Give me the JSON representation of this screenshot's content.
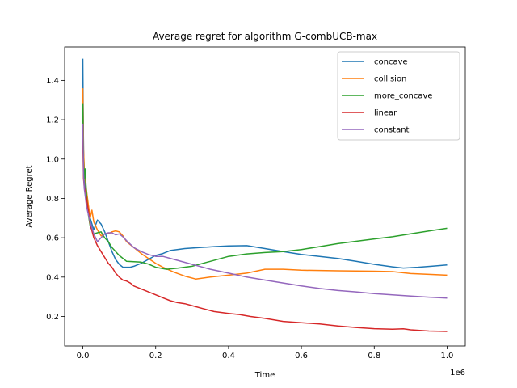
{
  "chart_data": {
    "type": "line",
    "title": "Average regret for algorithm G-combUCB-max",
    "xlabel": "Time",
    "ylabel": "Average Regret",
    "x_offset_label": "1e6",
    "xlim": [
      -0.05,
      1.05
    ],
    "ylim": [
      0.05,
      1.57
    ],
    "x_ticks": [
      0.0,
      0.2,
      0.4,
      0.6,
      0.8,
      1.0
    ],
    "x_tick_labels": [
      "0.0",
      "0.2",
      "0.4",
      "0.6",
      "0.8",
      "1.0"
    ],
    "y_ticks": [
      0.2,
      0.4,
      0.6,
      0.8,
      1.0,
      1.2,
      1.4
    ],
    "y_tick_labels": [
      "0.2",
      "0.4",
      "0.6",
      "0.8",
      "1.0",
      "1.2",
      "1.4"
    ],
    "grid": false,
    "legend_position": "top-right",
    "series": [
      {
        "name": "concave",
        "color": "#1f77b4",
        "x": [
          0.0,
          0.001,
          0.002,
          0.004,
          0.006,
          0.01,
          0.015,
          0.02,
          0.03,
          0.04,
          0.05,
          0.06,
          0.07,
          0.08,
          0.09,
          0.1,
          0.11,
          0.12,
          0.13,
          0.14,
          0.16,
          0.18,
          0.2,
          0.22,
          0.24,
          0.28,
          0.32,
          0.36,
          0.4,
          0.45,
          0.5,
          0.55,
          0.6,
          0.65,
          0.7,
          0.75,
          0.8,
          0.85,
          0.88,
          0.92,
          0.96,
          1.0
        ],
        "y": [
          1.51,
          1.25,
          1.05,
          0.92,
          0.87,
          0.82,
          0.76,
          0.7,
          0.64,
          0.69,
          0.67,
          0.63,
          0.58,
          0.53,
          0.49,
          0.465,
          0.45,
          0.45,
          0.45,
          0.455,
          0.47,
          0.49,
          0.51,
          0.52,
          0.535,
          0.545,
          0.55,
          0.555,
          0.558,
          0.56,
          0.545,
          0.53,
          0.515,
          0.505,
          0.495,
          0.48,
          0.465,
          0.452,
          0.446,
          0.45,
          0.456,
          0.462
        ]
      },
      {
        "name": "collision",
        "color": "#ff7f0e",
        "x": [
          0.0,
          0.001,
          0.002,
          0.004,
          0.006,
          0.01,
          0.015,
          0.02,
          0.025,
          0.03,
          0.04,
          0.05,
          0.06,
          0.07,
          0.08,
          0.09,
          0.1,
          0.11,
          0.12,
          0.14,
          0.16,
          0.18,
          0.2,
          0.22,
          0.25,
          0.28,
          0.31,
          0.35,
          0.4,
          0.45,
          0.5,
          0.55,
          0.6,
          0.7,
          0.8,
          0.85,
          0.9,
          1.0
        ],
        "y": [
          1.36,
          1.2,
          1.05,
          0.95,
          0.9,
          0.84,
          0.77,
          0.7,
          0.74,
          0.68,
          0.64,
          0.61,
          0.62,
          0.62,
          0.63,
          0.635,
          0.63,
          0.61,
          0.58,
          0.55,
          0.52,
          0.495,
          0.47,
          0.45,
          0.425,
          0.405,
          0.39,
          0.4,
          0.41,
          0.42,
          0.44,
          0.44,
          0.435,
          0.432,
          0.43,
          0.428,
          0.418,
          0.41
        ]
      },
      {
        "name": "more_concave",
        "color": "#2ca02c",
        "x": [
          0.0,
          0.001,
          0.002,
          0.004,
          0.006,
          0.01,
          0.015,
          0.02,
          0.03,
          0.04,
          0.05,
          0.06,
          0.07,
          0.08,
          0.1,
          0.12,
          0.14,
          0.16,
          0.18,
          0.2,
          0.23,
          0.26,
          0.3,
          0.35,
          0.4,
          0.45,
          0.5,
          0.55,
          0.6,
          0.65,
          0.7,
          0.75,
          0.8,
          0.85,
          0.9,
          0.95,
          1.0
        ],
        "y": [
          1.28,
          1.1,
          0.98,
          0.9,
          0.95,
          0.82,
          0.72,
          0.66,
          0.62,
          0.625,
          0.63,
          0.6,
          0.58,
          0.55,
          0.51,
          0.48,
          0.478,
          0.476,
          0.466,
          0.45,
          0.44,
          0.445,
          0.455,
          0.48,
          0.505,
          0.518,
          0.525,
          0.53,
          0.54,
          0.555,
          0.57,
          0.582,
          0.594,
          0.605,
          0.62,
          0.634,
          0.648
        ]
      },
      {
        "name": "linear",
        "color": "#d62728",
        "x": [
          0.0,
          0.001,
          0.002,
          0.004,
          0.006,
          0.01,
          0.015,
          0.02,
          0.03,
          0.04,
          0.05,
          0.06,
          0.07,
          0.08,
          0.09,
          0.1,
          0.11,
          0.12,
          0.13,
          0.14,
          0.16,
          0.18,
          0.2,
          0.22,
          0.24,
          0.26,
          0.28,
          0.3,
          0.33,
          0.36,
          0.4,
          0.43,
          0.46,
          0.5,
          0.55,
          0.6,
          0.65,
          0.7,
          0.75,
          0.8,
          0.85,
          0.88,
          0.9,
          0.95,
          1.0
        ],
        "y": [
          1.1,
          0.98,
          0.9,
          0.86,
          0.84,
          0.8,
          0.74,
          0.67,
          0.6,
          0.56,
          0.53,
          0.5,
          0.47,
          0.45,
          0.42,
          0.4,
          0.385,
          0.38,
          0.37,
          0.355,
          0.34,
          0.325,
          0.31,
          0.295,
          0.28,
          0.27,
          0.265,
          0.255,
          0.24,
          0.225,
          0.215,
          0.21,
          0.2,
          0.19,
          0.175,
          0.168,
          0.162,
          0.152,
          0.144,
          0.138,
          0.135,
          0.137,
          0.132,
          0.126,
          0.124
        ]
      },
      {
        "name": "constant",
        "color": "#9467bd",
        "x": [
          0.0,
          0.001,
          0.002,
          0.004,
          0.006,
          0.01,
          0.015,
          0.02,
          0.03,
          0.04,
          0.05,
          0.06,
          0.07,
          0.08,
          0.09,
          0.1,
          0.11,
          0.12,
          0.14,
          0.16,
          0.18,
          0.2,
          0.22,
          0.25,
          0.3,
          0.35,
          0.4,
          0.45,
          0.5,
          0.55,
          0.6,
          0.65,
          0.7,
          0.75,
          0.8,
          0.85,
          0.9,
          0.95,
          1.0
        ],
        "y": [
          1.18,
          1.05,
          0.93,
          0.85,
          0.82,
          0.76,
          0.72,
          0.68,
          0.62,
          0.58,
          0.6,
          0.62,
          0.625,
          0.625,
          0.615,
          0.62,
          0.605,
          0.585,
          0.55,
          0.53,
          0.515,
          0.505,
          0.505,
          0.49,
          0.465,
          0.44,
          0.42,
          0.4,
          0.385,
          0.37,
          0.355,
          0.342,
          0.332,
          0.325,
          0.316,
          0.31,
          0.304,
          0.298,
          0.293
        ]
      }
    ]
  }
}
